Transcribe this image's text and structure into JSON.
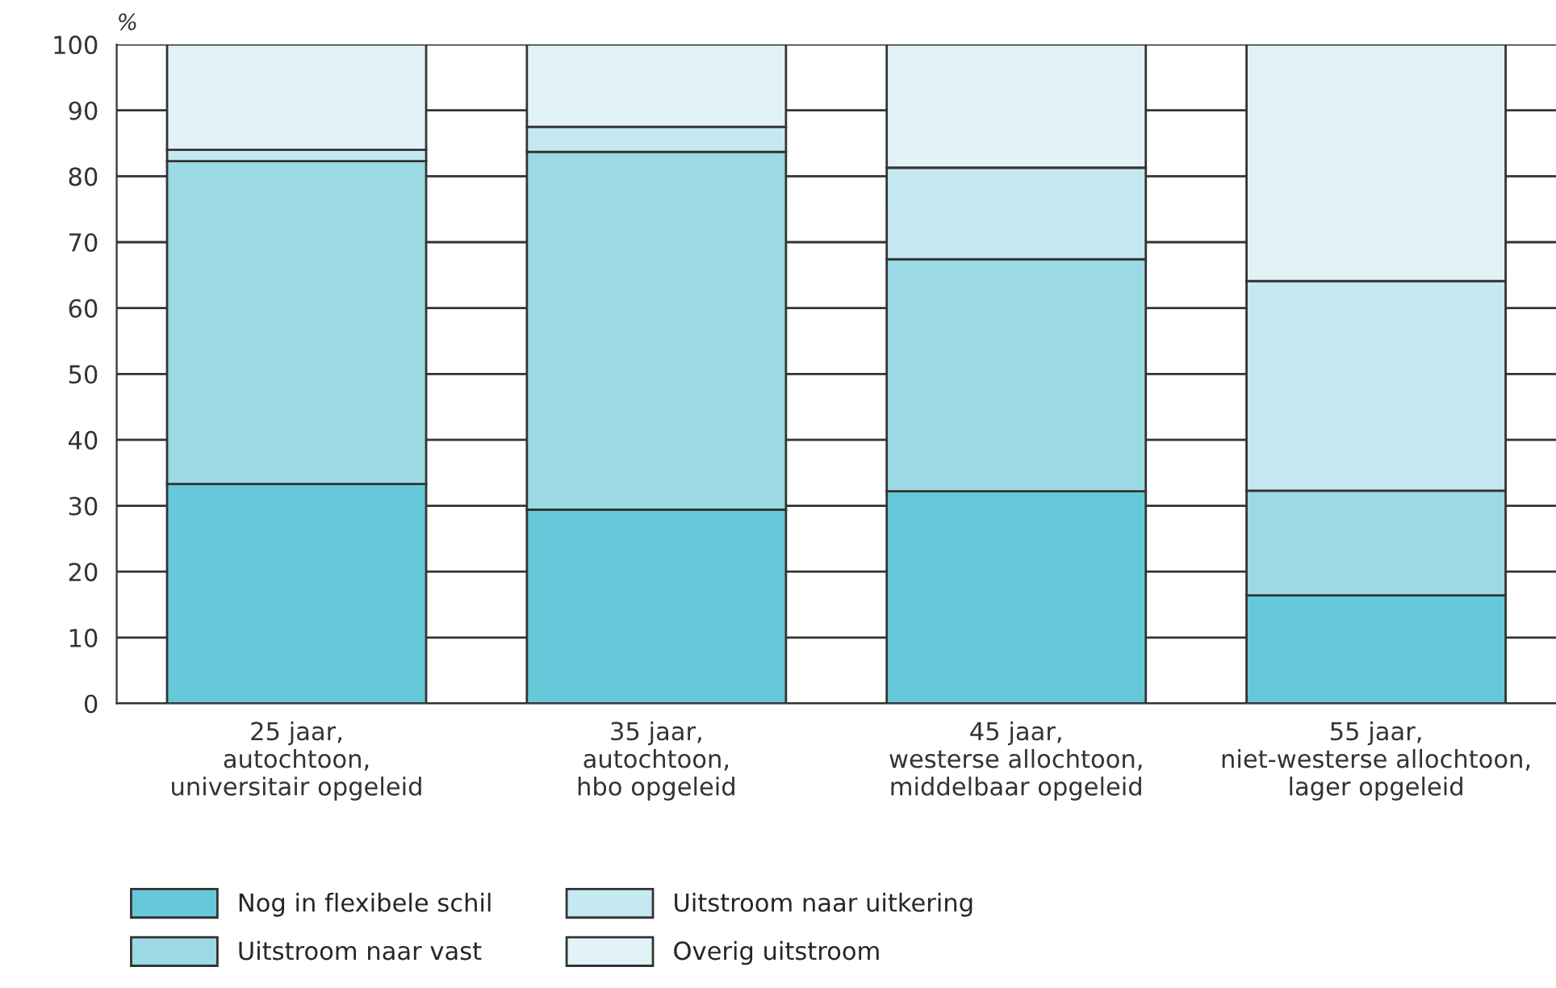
{
  "chart_data": {
    "type": "bar",
    "stacked": true,
    "ylabel": "%",
    "categories": [
      "25 jaar,\nautochtoon,\nuniversitair opgeleid",
      "35 jaar,\nautochtoon,\nhbo opgeleid",
      "45 jaar,\nwesterse allochtoon,\nmiddelbaar opgeleid",
      "55 jaar,\nniet-westerse allochtoon,\nlager opgeleid"
    ],
    "series": [
      {
        "name": "Nog in flexibele schil",
        "color": "#66c9d9",
        "values": [
          33.3,
          29.4,
          32.2,
          16.4
        ]
      },
      {
        "name": "Uitstroom naar vast",
        "color": "#9bd9e5",
        "values": [
          49.0,
          54.3,
          35.2,
          15.9
        ]
      },
      {
        "name": "Uitstroom naar uitkering",
        "color": "#c6e8f0",
        "values": [
          1.7,
          3.8,
          13.9,
          31.8
        ]
      },
      {
        "name": "Overig uitstroom",
        "color": "#e1f3f7",
        "values": [
          16.0,
          12.5,
          18.7,
          35.9
        ]
      }
    ],
    "ylim": [
      0,
      100
    ],
    "yticks": [
      0,
      10,
      20,
      30,
      40,
      50,
      60,
      70,
      80,
      90,
      100
    ],
    "grid": "y",
    "legend": "bottom"
  }
}
